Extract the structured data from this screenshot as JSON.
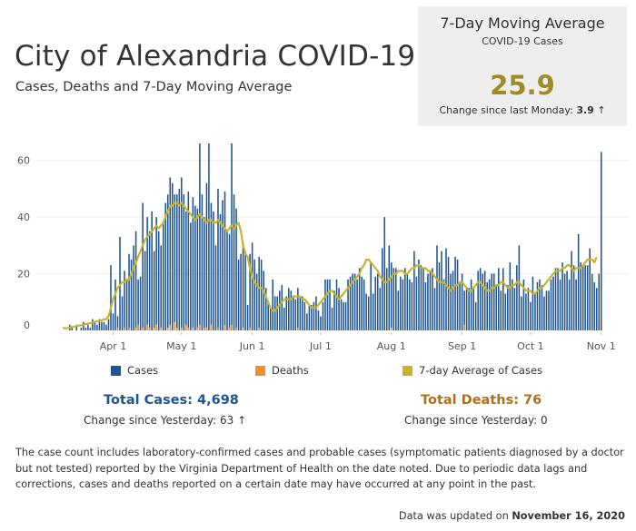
{
  "header": {
    "title": "City of Alexandria COVID-19",
    "subtitle": "Cases, Deaths  and 7-Day Moving Average"
  },
  "kpi": {
    "title": "7-Day Moving Average",
    "subtitle": "COVID-19 Cases",
    "value": "25.9",
    "change_label": "Change since last Monday:",
    "change_value": "3.9",
    "change_arrow": "↑"
  },
  "legend": {
    "cases": "Cases",
    "deaths": "Deaths",
    "avg": "7-day Average of Cases"
  },
  "totals": {
    "cases_label": "Total Cases: 4,698",
    "cases_change": "Change since Yesterday: 63 ↑",
    "deaths_label": "Total Deaths: 76",
    "deaths_change": "Change since Yesterday: 0"
  },
  "footnote": "The case count includes laboratory-confirmed cases and probable cases (symptomatic patients diagnosed by a doctor but not tested) reported by the Virginia Department of Health on the date noted. Due to periodic data lags and corrections, cases and deaths reported on a certain date may have occurred at any point in the past.",
  "updated_label": "Data was updated on",
  "updated_date": "November 16, 2020",
  "colors": {
    "cases": "#1f5591",
    "deaths": "#f28e2b",
    "avg": "#c6b42a",
    "kpi_value": "#a08c26",
    "cases_total": "#1f5591",
    "deaths_total": "#b06f1c"
  },
  "chart_data": {
    "type": "bar",
    "x_start": "2020-03-10",
    "x_ticks": [
      "Apr 1",
      "May 1",
      "Jun 1",
      "Jul 1",
      "Aug 1",
      "Sep 1",
      "Oct 1",
      "Nov 1"
    ],
    "y_ticks": [
      0,
      20,
      40,
      60
    ],
    "ylim": [
      0,
      66
    ],
    "grid": true,
    "legend_position": "bottom",
    "series": [
      {
        "name": "Cases",
        "values": [
          0,
          0,
          0,
          2,
          1,
          0,
          2,
          0,
          1,
          3,
          1,
          2,
          1,
          4,
          3,
          2,
          4,
          3,
          3,
          2,
          4,
          23,
          6,
          18,
          5,
          33,
          12,
          21,
          18,
          27,
          25,
          30,
          35,
          18,
          19,
          45,
          28,
          40,
          35,
          42,
          28,
          40,
          35,
          30,
          38,
          45,
          48,
          54,
          52,
          48,
          48,
          50,
          54,
          48,
          42,
          49,
          38,
          47,
          44,
          43,
          66,
          48,
          40,
          52,
          66,
          45,
          42,
          30,
          50,
          41,
          46,
          49,
          35,
          34,
          66,
          48,
          43,
          25,
          27,
          31,
          28,
          9,
          27,
          31,
          25,
          20,
          26,
          25,
          21,
          15,
          10,
          8,
          18,
          12,
          12,
          14,
          16,
          8,
          12,
          15,
          14,
          12,
          11,
          15,
          12,
          12,
          10,
          6,
          9,
          9,
          10,
          12,
          7,
          5,
          10,
          18,
          18,
          18,
          8,
          14,
          18,
          15,
          11,
          10,
          10,
          18,
          19,
          20,
          20,
          18,
          22,
          19,
          18,
          13,
          12,
          24,
          13,
          19,
          20,
          15,
          29,
          40,
          22,
          30,
          24,
          22,
          22,
          14,
          19,
          18,
          22,
          20,
          18,
          17,
          28,
          19,
          25,
          23,
          22,
          17,
          20,
          21,
          22,
          15,
          30,
          24,
          28,
          18,
          29,
          26,
          20,
          21,
          26,
          25,
          17,
          20,
          14,
          15,
          15,
          18,
          15,
          10,
          21,
          22,
          20,
          21,
          17,
          18,
          20,
          20,
          16,
          22,
          14,
          22,
          13,
          16,
          24,
          18,
          15,
          23,
          30,
          12,
          18,
          13,
          15,
          10,
          19,
          13,
          17,
          18,
          16,
          12,
          14,
          14,
          18,
          19,
          22,
          22,
          18,
          24,
          20,
          21,
          18,
          28,
          23,
          18,
          34,
          24,
          23,
          23,
          23,
          29,
          20,
          17,
          15,
          20,
          63
        ],
        "color": "#1f5591"
      },
      {
        "name": "Deaths",
        "values": [
          0,
          0,
          0,
          0,
          0,
          0,
          0,
          0,
          0,
          0,
          0,
          0,
          0,
          0,
          0,
          0,
          0,
          0,
          0,
          0,
          0,
          0,
          0,
          0,
          1,
          0,
          0,
          1,
          0,
          1,
          0,
          0,
          1,
          2,
          0,
          1,
          0,
          2,
          1,
          0,
          1,
          2,
          0,
          1,
          0,
          0,
          1,
          2,
          0,
          3,
          1,
          0,
          1,
          0,
          2,
          1,
          0,
          1,
          0,
          1,
          2,
          0,
          1,
          1,
          0,
          2,
          0,
          0,
          1,
          0,
          0,
          2,
          0,
          1,
          2,
          0,
          1,
          0,
          0,
          1,
          0,
          0,
          1,
          0,
          0,
          0,
          1,
          0,
          0,
          0,
          0,
          0,
          0,
          0,
          0,
          0,
          0,
          0,
          0,
          0,
          0,
          0,
          0,
          1,
          0,
          0,
          0,
          0,
          0,
          0,
          0,
          0,
          0,
          0,
          0,
          0,
          0,
          0,
          0,
          0,
          0,
          0,
          0,
          0,
          0,
          0,
          0,
          0,
          0,
          0,
          0,
          0,
          0,
          0,
          0,
          0,
          0,
          0,
          0,
          0,
          0,
          0,
          0,
          0,
          1,
          0,
          0,
          0,
          0,
          0,
          0,
          0,
          0,
          0,
          0,
          0,
          0,
          0,
          0,
          0,
          0,
          0,
          0,
          0,
          0,
          0,
          0,
          0,
          0,
          0,
          0,
          0,
          0,
          0,
          0,
          0,
          2,
          0,
          0,
          0,
          0,
          0,
          0,
          0,
          0,
          0,
          0,
          0,
          0,
          0,
          0,
          0,
          0,
          0,
          0,
          0,
          0,
          0,
          0,
          0,
          0,
          0,
          0,
          0,
          0,
          0,
          0,
          0,
          0,
          0,
          0,
          0,
          0,
          0,
          0,
          0,
          0,
          0,
          0,
          0,
          0,
          0,
          0,
          0,
          0,
          0,
          0,
          0,
          0,
          0,
          0,
          0,
          0,
          0,
          0,
          0,
          0,
          0,
          0,
          0,
          0,
          0,
          0
        ],
        "color": "#f28e2b"
      },
      {
        "name": "7-day Average of Cases",
        "type": "line",
        "values": [
          1,
          0.7,
          0.8,
          1,
          1.2,
          1.3,
          1.5,
          1.7,
          1.8,
          2,
          2.2,
          2.4,
          2.6,
          2.8,
          3,
          3.2,
          3.4,
          3.6,
          3.8,
          4,
          5,
          8,
          11,
          13,
          15,
          16,
          17,
          17,
          18,
          18,
          20,
          22,
          24,
          26,
          28,
          30,
          32,
          33,
          34,
          35,
          36,
          37,
          36,
          37,
          38,
          40,
          42,
          44,
          44,
          45,
          45,
          44,
          45,
          44,
          43,
          42,
          41,
          40,
          39,
          40,
          41,
          40,
          39,
          38,
          39,
          39,
          38,
          38,
          39,
          38,
          37,
          36,
          35,
          36,
          37,
          36,
          37,
          38,
          35,
          30,
          27,
          26,
          22,
          19,
          17,
          16,
          15,
          15,
          14,
          12,
          10,
          8,
          7,
          7,
          8,
          9,
          10,
          11,
          11,
          11,
          11,
          12,
          12,
          12,
          12,
          11,
          11,
          10,
          9,
          8,
          8,
          8,
          9,
          10,
          11,
          12,
          13,
          14,
          14,
          13,
          12,
          11,
          12,
          13,
          14,
          15,
          16,
          17,
          18,
          19,
          20,
          22,
          23,
          25,
          25,
          24,
          23,
          22,
          21,
          19,
          18,
          17,
          17,
          18,
          19,
          20,
          20,
          21,
          21,
          21,
          20,
          20,
          21,
          22,
          22,
          23,
          23,
          22,
          22,
          22,
          21,
          21,
          20,
          19,
          18,
          17,
          17,
          17,
          16,
          15,
          14,
          15,
          16,
          16,
          17,
          17,
          16,
          15,
          14,
          14,
          15,
          16,
          17,
          17,
          16,
          15,
          14,
          14,
          15,
          15,
          16,
          16,
          17,
          17,
          16,
          15,
          15,
          16,
          16,
          17,
          17,
          16,
          15,
          14,
          14,
          14,
          13,
          13,
          14,
          15,
          15,
          16,
          17,
          18,
          19,
          20,
          21,
          21,
          21,
          22,
          22,
          23,
          23,
          22,
          21,
          22,
          22,
          22,
          23,
          24,
          25,
          25,
          25,
          24,
          25.9
        ],
        "color": "#c6b42a"
      }
    ]
  }
}
